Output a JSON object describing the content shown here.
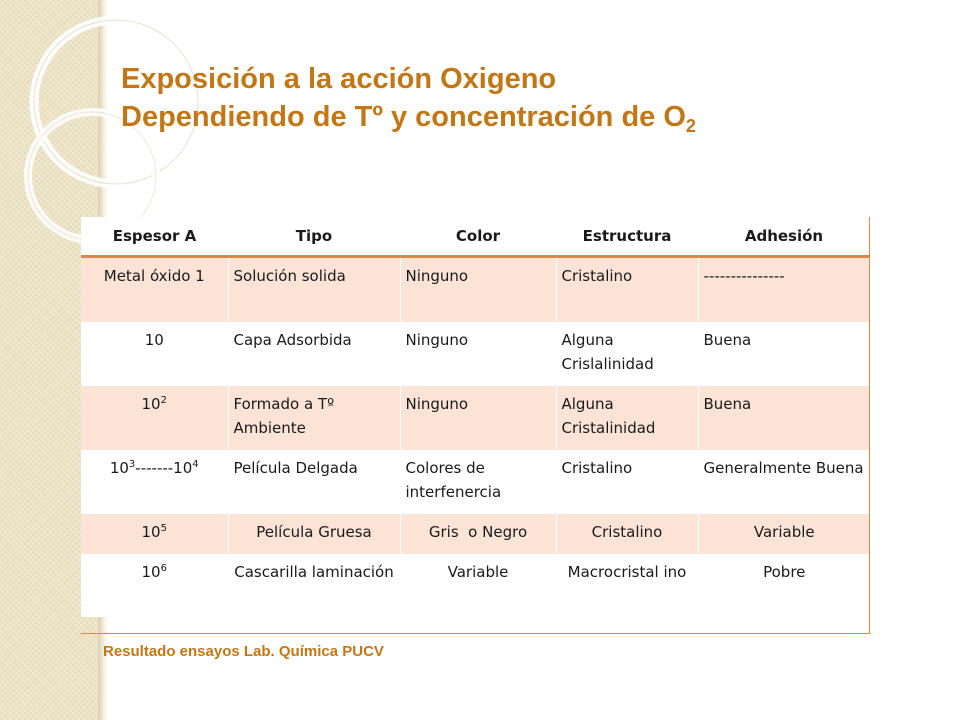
{
  "theme": {
    "accent": "#c27714",
    "row_shade": "#fbe3d5",
    "header_rule": "#d98a4a"
  },
  "title": {
    "line1": "Exposición a la acción Oxigeno",
    "line2_main": "Dependiendo de Tº y concentración de O",
    "line2_sub": "2"
  },
  "table": {
    "headers": [
      "Espesor A",
      "Tipo",
      "Color",
      "Estructura",
      "Adhesión"
    ],
    "rows": [
      {
        "espesor": {
          "base": "Metal óxido 1"
        },
        "tipo": "Solución solida",
        "color": "Ninguno",
        "estructura": "Cristalino",
        "adhesion": "---------------"
      },
      {
        "espesor": {
          "base": "10"
        },
        "tipo": "Capa Adsorbida",
        "color": "Ninguno",
        "estructura": "Alguna Crislalinidad",
        "adhesion": "Buena"
      },
      {
        "espesor": {
          "base": "10",
          "exp": "2"
        },
        "tipo": "Formado a Tº Ambiente",
        "color": "Ninguno",
        "estructura": "Alguna Cristalinidad",
        "adhesion": "Buena"
      },
      {
        "espesor": {
          "base": "10",
          "exp": "3",
          "mid": "-------10",
          "exp2": "4"
        },
        "tipo": "Película Delgada",
        "color": "Colores de interfenercia",
        "estructura": "Cristalino",
        "adhesion": "Generalmente Buena"
      },
      {
        "espesor": {
          "base": "10",
          "exp": "5"
        },
        "tipo": "Película Gruesa",
        "color": "Gris  o Negro",
        "estructura": "Cristalino",
        "adhesion": "Variable"
      },
      {
        "espesor": {
          "base": "10",
          "exp": "6"
        },
        "tipo": "Cascarilla laminación",
        "color": "Variable",
        "estructura": "Macrocristal ino",
        "adhesion": "Pobre"
      }
    ]
  },
  "footer": "Resultado ensayos Lab. Química PUCV"
}
